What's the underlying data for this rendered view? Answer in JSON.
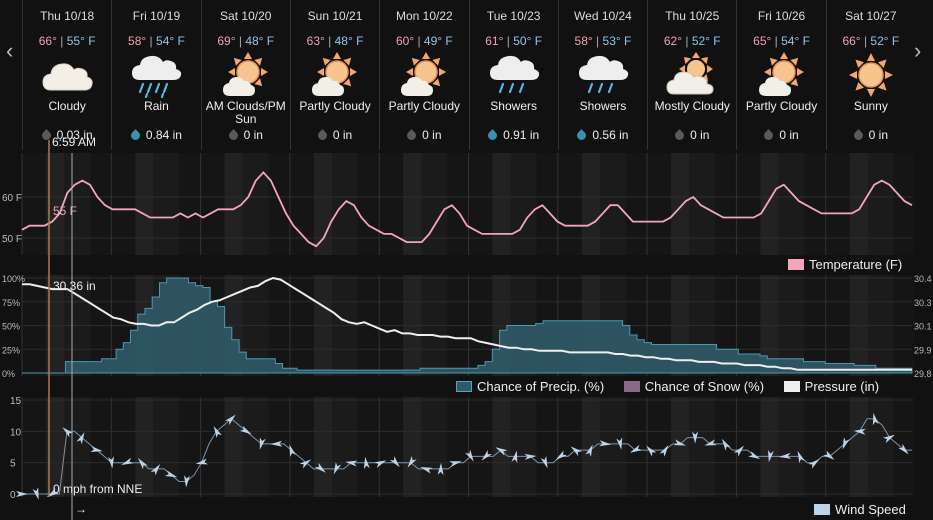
{
  "nav": {
    "prev_symbol": "‹",
    "next_symbol": "›"
  },
  "days": [
    {
      "date": "Thu 10/18",
      "hi": "66°",
      "lo": "55° F",
      "cond": "Cloudy",
      "precip": "0.03 in",
      "icon": "cloud-icon",
      "rainy": false
    },
    {
      "date": "Fri 10/19",
      "hi": "58°",
      "lo": "54° F",
      "cond": "Rain",
      "precip": "0.84 in",
      "icon": "rain-icon",
      "rainy": true
    },
    {
      "date": "Sat 10/20",
      "hi": "69°",
      "lo": "48° F",
      "cond": "AM Clouds/PM Sun",
      "precip": "0 in",
      "icon": "partly-sunny-icon",
      "rainy": false
    },
    {
      "date": "Sun 10/21",
      "hi": "63°",
      "lo": "48° F",
      "cond": "Partly Cloudy",
      "precip": "0 in",
      "icon": "partly-sunny-icon",
      "rainy": false
    },
    {
      "date": "Mon 10/22",
      "hi": "60°",
      "lo": "49° F",
      "cond": "Partly Cloudy",
      "precip": "0 in",
      "icon": "partly-sunny-icon",
      "rainy": false
    },
    {
      "date": "Tue 10/23",
      "hi": "61°",
      "lo": "50° F",
      "cond": "Showers",
      "precip": "0.91 in",
      "icon": "showers-icon",
      "rainy": true
    },
    {
      "date": "Wed 10/24",
      "hi": "58°",
      "lo": "53° F",
      "cond": "Showers",
      "precip": "0.56 in",
      "icon": "showers-icon",
      "rainy": true
    },
    {
      "date": "Thu 10/25",
      "hi": "62°",
      "lo": "52° F",
      "cond": "Mostly Cloudy",
      "precip": "0 in",
      "icon": "mostly-cloudy-icon",
      "rainy": false
    },
    {
      "date": "Fri 10/26",
      "hi": "65°",
      "lo": "54° F",
      "cond": "Partly Cloudy",
      "precip": "0 in",
      "icon": "partly-sunny-icon",
      "rainy": false
    },
    {
      "date": "Sat 10/27",
      "hi": "66°",
      "lo": "52° F",
      "cond": "Sunny",
      "precip": "0 in",
      "icon": "sun-icon",
      "rainy": false
    }
  ],
  "cursor": {
    "time": "6:59 AM",
    "temp": "55 F",
    "pressure": "30.36 in",
    "wind": "0 mph from NNE",
    "wind_arrow": "→"
  },
  "temp_chart": {
    "y_ticks": [
      "60 F",
      "50 F"
    ],
    "legend": "Temperature (F)",
    "color": "#f4a6b8",
    "values": [
      52,
      53,
      53,
      53,
      54,
      56,
      61,
      63,
      64,
      63,
      60,
      58,
      57,
      57,
      57,
      57,
      56,
      55,
      55,
      55,
      55,
      56,
      55,
      56,
      55,
      56,
      57,
      57,
      57,
      58,
      60,
      64,
      66,
      64,
      60,
      56,
      53,
      51,
      49,
      48,
      50,
      54,
      57,
      59,
      58,
      55,
      53,
      52,
      51,
      51,
      50,
      49,
      49,
      49,
      51,
      54,
      57,
      58,
      56,
      53,
      52,
      51,
      51,
      51,
      51,
      51,
      52,
      55,
      57,
      58,
      56,
      54,
      53,
      53,
      53,
      53,
      54,
      56,
      58,
      58,
      56,
      54,
      54,
      54,
      54,
      54,
      55,
      57,
      59,
      60,
      58,
      57,
      56,
      55,
      55,
      55,
      55,
      55,
      56,
      59,
      62,
      63,
      61,
      59,
      58,
      57,
      56,
      56,
      56,
      56,
      56,
      57,
      60,
      63,
      64,
      63,
      61,
      59,
      58
    ]
  },
  "precip_chart": {
    "y_ticks_left": [
      "100%",
      "75%",
      "50%",
      "25%",
      "0%"
    ],
    "y_ticks_right": [
      "30.4",
      "30.3",
      "30.1",
      "29.9",
      "29.8"
    ],
    "legend": {
      "precip": "Chance of Precip. (%)",
      "snow": "Chance of Snow (%)",
      "pressure": "Pressure (in)"
    },
    "colors": {
      "precip_fill": "#2f5a68",
      "precip_line": "#54a6c0",
      "snow": "#8a6a88",
      "pressure": "#eeeeee"
    },
    "precip_values": [
      0,
      0,
      0,
      0,
      0,
      0,
      12,
      12,
      12,
      12,
      12,
      15,
      15,
      25,
      32,
      45,
      62,
      68,
      80,
      95,
      100,
      100,
      100,
      95,
      92,
      90,
      75,
      70,
      48,
      35,
      22,
      15,
      15,
      15,
      15,
      10,
      5,
      5,
      3,
      3,
      3,
      3,
      3,
      3,
      3,
      3,
      3,
      3,
      3,
      3,
      3,
      3,
      3,
      3,
      3,
      5,
      5,
      5,
      5,
      5,
      5,
      5,
      5,
      8,
      12,
      25,
      45,
      50,
      50,
      50,
      50,
      52,
      55,
      55,
      55,
      55,
      55,
      55,
      55,
      55,
      55,
      55,
      55,
      50,
      40,
      35,
      32,
      30,
      30,
      30,
      30,
      30,
      30,
      30,
      30,
      30,
      25,
      25,
      25,
      20,
      20,
      20,
      18,
      15,
      15,
      15,
      15,
      15,
      12,
      12,
      12,
      10,
      10,
      10,
      10,
      8,
      8,
      8,
      5,
      5,
      5,
      5,
      5,
      5
    ],
    "pressure_values": [
      30.36,
      30.36,
      30.35,
      30.34,
      30.33,
      30.33,
      30.33,
      30.3,
      30.27,
      30.24,
      30.21,
      30.18,
      30.15,
      30.14,
      30.12,
      30.11,
      30.11,
      30.1,
      30.1,
      30.12,
      30.12,
      30.15,
      30.18,
      30.2,
      30.23,
      30.25,
      30.26,
      30.28,
      30.3,
      30.32,
      30.34,
      30.35,
      30.38,
      30.4,
      30.39,
      30.36,
      30.33,
      30.3,
      30.27,
      30.24,
      30.21,
      30.18,
      30.14,
      30.12,
      30.11,
      30.12,
      30.1,
      30.08,
      30.06,
      30.07,
      30.05,
      30.05,
      30.04,
      30.04,
      30.04,
      30.03,
      30.03,
      30.02,
      30.02,
      30.02,
      30.0,
      29.99,
      29.98,
      29.97,
      29.96,
      29.96,
      29.95,
      29.95,
      29.94,
      29.94,
      29.94,
      29.94,
      29.93,
      29.93,
      29.93,
      29.93,
      29.93,
      29.93,
      29.92,
      29.92,
      29.91,
      29.91,
      29.9,
      29.9,
      29.89,
      29.89,
      29.88,
      29.88,
      29.88,
      29.87,
      29.87,
      29.87,
      29.86,
      29.86,
      29.86,
      29.85,
      29.85,
      29.85,
      29.84,
      29.84,
      29.83,
      29.83,
      29.82,
      29.82,
      29.82,
      29.82,
      29.82,
      29.82,
      29.82,
      29.82,
      29.82,
      29.82,
      29.82,
      29.82,
      29.82,
      29.82,
      29.82,
      29.82
    ],
    "snow_values": [
      0
    ]
  },
  "wind_chart": {
    "y_ticks": [
      "15",
      "10",
      "5",
      "0"
    ],
    "legend": "Wind Speed",
    "color": "#bcd4ea",
    "values": [
      0,
      0,
      0,
      0,
      0,
      0,
      10,
      10,
      9,
      8,
      7,
      6,
      5,
      5,
      5,
      5,
      5,
      4,
      4,
      4,
      3,
      2,
      2,
      3,
      5,
      8,
      10,
      11,
      12,
      11,
      10,
      9,
      8,
      8,
      8,
      8,
      7,
      6,
      5,
      4,
      4,
      4,
      4,
      4,
      5,
      5,
      5,
      5,
      5,
      5,
      5,
      5,
      5,
      4,
      4,
      4,
      4,
      4,
      5,
      5,
      6,
      6,
      6,
      6,
      7,
      6,
      6,
      6,
      6,
      5,
      5,
      5,
      6,
      6,
      7,
      7,
      7,
      8,
      8,
      8,
      8,
      8,
      7,
      7,
      7,
      7,
      7,
      8,
      8,
      9,
      9,
      9,
      8,
      8,
      8,
      7,
      7,
      7,
      6,
      6,
      6,
      6,
      6,
      6,
      6,
      5,
      5,
      6,
      6,
      7,
      8,
      9,
      10,
      12,
      12,
      11,
      9,
      8,
      7,
      7
    ]
  }
}
